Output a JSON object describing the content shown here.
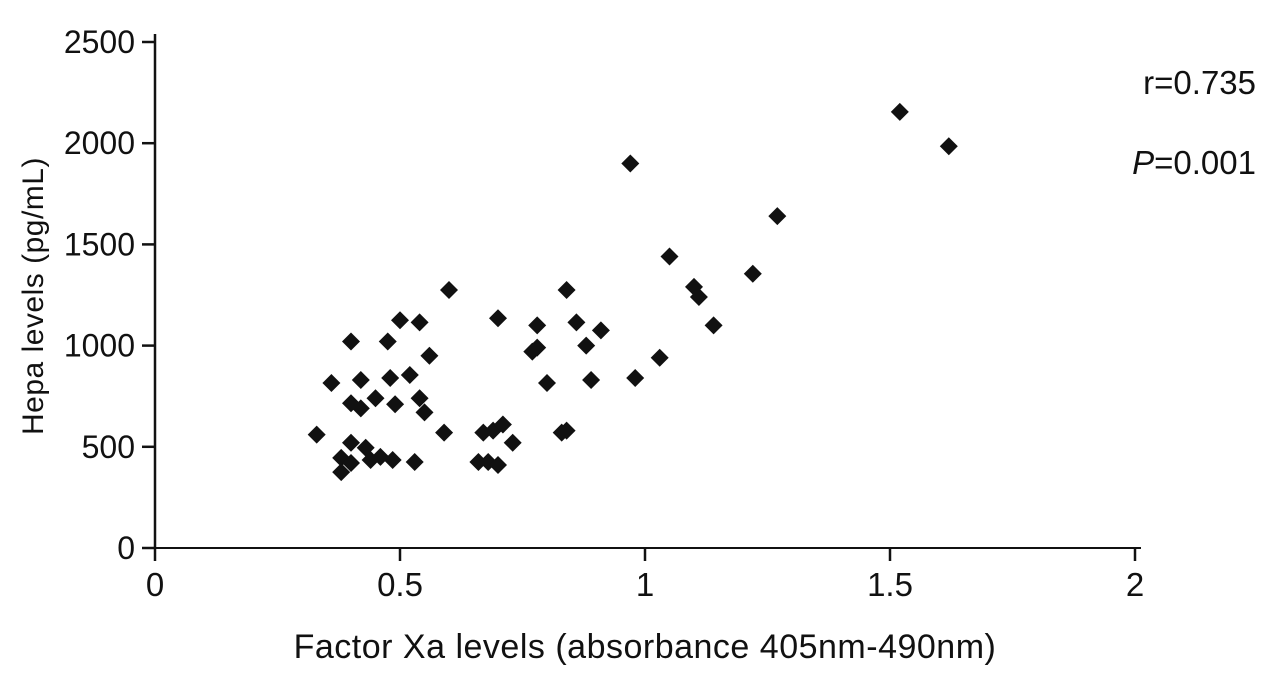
{
  "chart_data": {
    "type": "scatter",
    "title": "",
    "xlabel": "Factor Xa levels (absorbance 405nm-490nm)",
    "ylabel": "Hepa levels (pg/mL)",
    "xlim": [
      0,
      2
    ],
    "ylim": [
      0,
      2500
    ],
    "x_ticks": [
      0,
      0.5,
      1,
      1.5,
      2
    ],
    "y_ticks": [
      0,
      500,
      1000,
      1500,
      2000,
      2500
    ],
    "grid": false,
    "legend": "none",
    "marker": "diamond",
    "marker_color": "#111111",
    "ink_color": "#111111",
    "background_color": "#ffffff",
    "annotations": [
      {
        "italic_prefix": "",
        "text": "r=0.735"
      },
      {
        "italic_prefix": "P",
        "text": "=0.001"
      }
    ],
    "points": [
      [
        0.33,
        560
      ],
      [
        0.36,
        815
      ],
      [
        0.38,
        375
      ],
      [
        0.38,
        445
      ],
      [
        0.4,
        420
      ],
      [
        0.4,
        520
      ],
      [
        0.4,
        715
      ],
      [
        0.4,
        1020
      ],
      [
        0.42,
        830
      ],
      [
        0.42,
        690
      ],
      [
        0.43,
        495
      ],
      [
        0.44,
        435
      ],
      [
        0.45,
        740
      ],
      [
        0.46,
        450
      ],
      [
        0.475,
        1020
      ],
      [
        0.48,
        840
      ],
      [
        0.485,
        435
      ],
      [
        0.49,
        710
      ],
      [
        0.5,
        1125
      ],
      [
        0.52,
        855
      ],
      [
        0.53,
        425
      ],
      [
        0.54,
        1115
      ],
      [
        0.54,
        740
      ],
      [
        0.55,
        670
      ],
      [
        0.56,
        950
      ],
      [
        0.59,
        570
      ],
      [
        0.6,
        1275
      ],
      [
        0.66,
        425
      ],
      [
        0.67,
        570
      ],
      [
        0.68,
        425
      ],
      [
        0.69,
        580
      ],
      [
        0.7,
        410
      ],
      [
        0.7,
        1135
      ],
      [
        0.71,
        610
      ],
      [
        0.73,
        520
      ],
      [
        0.77,
        970
      ],
      [
        0.78,
        990
      ],
      [
        0.78,
        1100
      ],
      [
        0.8,
        815
      ],
      [
        0.83,
        570
      ],
      [
        0.84,
        580
      ],
      [
        0.84,
        1275
      ],
      [
        0.86,
        1115
      ],
      [
        0.88,
        1000
      ],
      [
        0.89,
        830
      ],
      [
        0.91,
        1075
      ],
      [
        0.97,
        1900
      ],
      [
        0.98,
        840
      ],
      [
        1.03,
        940
      ],
      [
        1.05,
        1440
      ],
      [
        1.1,
        1290
      ],
      [
        1.11,
        1240
      ],
      [
        1.14,
        1100
      ],
      [
        1.22,
        1355
      ],
      [
        1.27,
        1640
      ],
      [
        1.52,
        2155
      ],
      [
        1.62,
        1985
      ]
    ]
  }
}
